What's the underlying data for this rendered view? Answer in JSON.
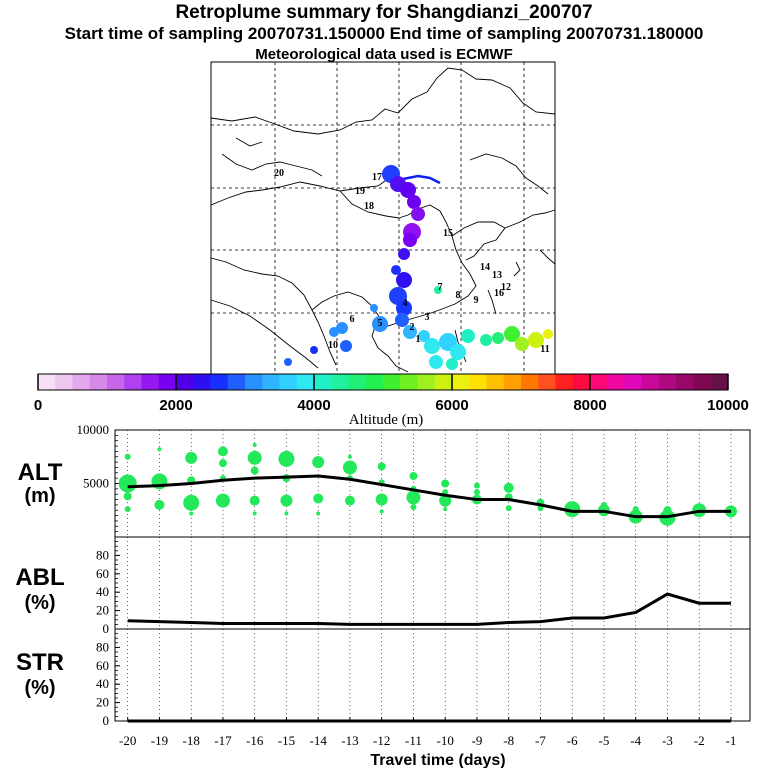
{
  "header": {
    "title": "Retroplume summary for Shangdianzi_200707",
    "sampling": "Start time of sampling 20070731.150000     End time of sampling 20070731.180000",
    "met": "Meteorological data used is ECMWF"
  },
  "colorbar": {
    "label": "Altitude (m)",
    "ticks": [
      "0",
      "2000",
      "4000",
      "6000",
      "8000",
      "10000"
    ],
    "range": [
      0,
      10000
    ],
    "colors": [
      "#f7e0f7",
      "#eec8ee",
      "#e3a8ee",
      "#d68ae8",
      "#c766e8",
      "#b040f0",
      "#9418f0",
      "#7a00f0",
      "#5000e8",
      "#2d10f0",
      "#1830ff",
      "#2060ff",
      "#2890ff",
      "#30b4ff",
      "#30d0ff",
      "#30e8f0",
      "#20f0c8",
      "#20f0a0",
      "#20f078",
      "#20f050",
      "#40f030",
      "#70f020",
      "#a0f020",
      "#ccf010",
      "#ecf010",
      "#ffe000",
      "#ffc000",
      "#ffa000",
      "#ff7800",
      "#ff5020",
      "#ff2020",
      "#ff0a40",
      "#ff0878",
      "#f008a0",
      "#e008b8",
      "#c80898",
      "#b00880",
      "#980868",
      "#800850",
      "#681048"
    ]
  },
  "map": {
    "numbered_positions": [
      {
        "label": "1",
        "days": 1
      },
      {
        "label": "2",
        "days": 2
      },
      {
        "label": "3",
        "days": 3
      },
      {
        "label": "4",
        "days": 4
      },
      {
        "label": "5",
        "days": 5
      },
      {
        "label": "6",
        "days": 6
      },
      {
        "label": "7",
        "days": 7
      },
      {
        "label": "8",
        "days": 8
      },
      {
        "label": "9",
        "days": 9
      },
      {
        "label": "10",
        "days": 10
      },
      {
        "label": "11",
        "days": 11
      },
      {
        "label": "12",
        "days": 12
      },
      {
        "label": "13",
        "days": 13
      },
      {
        "label": "14",
        "days": 14
      },
      {
        "label": "15",
        "days": 15
      },
      {
        "label": "16",
        "days": 16
      },
      {
        "label": "17",
        "days": 17
      },
      {
        "label": "18",
        "days": 18
      },
      {
        "label": "19",
        "days": 19
      },
      {
        "label": "20",
        "days": 20
      }
    ]
  },
  "panels": {
    "alt": {
      "label_top": "ALT",
      "label_bottom": "(m)"
    },
    "abl": {
      "label_top": "ABL",
      "label_bottom": "(%)"
    },
    "str": {
      "label_top": "STR",
      "label_bottom": "(%)"
    }
  },
  "chart_data": [
    {
      "type": "line",
      "title": "ALT (m)",
      "xlabel": "Travel time (days)",
      "ylabel": "ALT (m)",
      "xlim": [
        -20,
        -0.5
      ],
      "ylim": [
        0,
        10000
      ],
      "yticks": [
        "10000",
        "5000"
      ],
      "xticks": [
        "-20",
        "-19",
        "-18",
        "-17",
        "-16",
        "-15",
        "-14",
        "-13",
        "-12",
        "-11",
        "-10",
        "-9",
        "-8",
        "-7",
        "-6",
        "-5",
        "-4",
        "-3",
        "-2",
        "-1"
      ],
      "x": [
        -20,
        -19,
        -18,
        -17,
        -16,
        -15,
        -14,
        -13,
        -12,
        -11,
        -10,
        -9,
        -8,
        -7,
        -6,
        -5,
        -4,
        -3,
        -2,
        -1
      ],
      "values": [
        4700,
        4800,
        5000,
        5300,
        5500,
        5600,
        5700,
        5400,
        4900,
        4400,
        3900,
        3500,
        3500,
        3000,
        2400,
        2400,
        1900,
        1900,
        2400,
        2400
      ],
      "clusters": [
        {
          "x": -20,
          "points": [
            [
              7500,
              3
            ],
            [
              5000,
              9
            ],
            [
              3800,
              4
            ],
            [
              2600,
              3
            ]
          ]
        },
        {
          "x": -19,
          "points": [
            [
              8200,
              2
            ],
            [
              5200,
              8
            ],
            [
              3000,
              5
            ]
          ]
        },
        {
          "x": -18,
          "points": [
            [
              7400,
              6
            ],
            [
              5300,
              4
            ],
            [
              3200,
              8
            ],
            [
              2200,
              2
            ]
          ]
        },
        {
          "x": -17,
          "points": [
            [
              8000,
              5
            ],
            [
              6900,
              4
            ],
            [
              5500,
              3
            ],
            [
              3400,
              7
            ]
          ]
        },
        {
          "x": -16,
          "points": [
            [
              8600,
              2
            ],
            [
              7400,
              7
            ],
            [
              6200,
              4
            ],
            [
              3400,
              5
            ],
            [
              2200,
              2
            ]
          ]
        },
        {
          "x": -15,
          "points": [
            [
              7300,
              8
            ],
            [
              5500,
              4
            ],
            [
              3400,
              6
            ],
            [
              2200,
              2
            ]
          ]
        },
        {
          "x": -14,
          "points": [
            [
              7000,
              6
            ],
            [
              3600,
              5
            ],
            [
              2200,
              2
            ]
          ]
        },
        {
          "x": -13,
          "points": [
            [
              7500,
              2
            ],
            [
              6500,
              7
            ],
            [
              5500,
              3
            ],
            [
              3400,
              5
            ]
          ]
        },
        {
          "x": -12,
          "points": [
            [
              6600,
              4
            ],
            [
              5100,
              3
            ],
            [
              3500,
              6
            ],
            [
              2400,
              2
            ]
          ]
        },
        {
          "x": -11,
          "points": [
            [
              5700,
              4
            ],
            [
              4500,
              3
            ],
            [
              3700,
              7
            ],
            [
              2800,
              3
            ]
          ]
        },
        {
          "x": -10,
          "points": [
            [
              5000,
              4
            ],
            [
              4200,
              3
            ],
            [
              3400,
              6
            ],
            [
              2600,
              2
            ]
          ]
        },
        {
          "x": -9,
          "points": [
            [
              4800,
              3
            ],
            [
              4200,
              3
            ],
            [
              3500,
              5
            ]
          ]
        },
        {
          "x": -8,
          "points": [
            [
              4600,
              5
            ],
            [
              3700,
              4
            ],
            [
              2700,
              3
            ]
          ]
        },
        {
          "x": -7,
          "points": [
            [
              3200,
              4
            ],
            [
              2700,
              3
            ]
          ]
        },
        {
          "x": -6,
          "points": [
            [
              2600,
              8
            ]
          ]
        },
        {
          "x": -5,
          "points": [
            [
              2500,
              6
            ],
            [
              3000,
              3
            ]
          ]
        },
        {
          "x": -4,
          "points": [
            [
              1900,
              7
            ],
            [
              2600,
              3
            ]
          ]
        },
        {
          "x": -3,
          "points": [
            [
              1800,
              8
            ],
            [
              2500,
              4
            ]
          ]
        },
        {
          "x": -2,
          "points": [
            [
              2500,
              7
            ]
          ]
        },
        {
          "x": -1,
          "points": [
            [
              2400,
              6
            ]
          ]
        }
      ]
    },
    {
      "type": "line",
      "title": "ABL (%)",
      "ylabel": "ABL (%)",
      "xlim": [
        -20,
        -0.5
      ],
      "ylim": [
        0,
        100
      ],
      "yticks": [
        "80",
        "60",
        "40",
        "20",
        "0"
      ],
      "x": [
        -20,
        -19,
        -18,
        -17,
        -16,
        -15,
        -14,
        -13,
        -12,
        -11,
        -10,
        -9,
        -8,
        -7,
        -6,
        -5,
        -4,
        -3,
        -2,
        -1
      ],
      "values": [
        9,
        8,
        7,
        6,
        6,
        6,
        6,
        5,
        5,
        5,
        5,
        5,
        7,
        8,
        12,
        12,
        18,
        38,
        28,
        28
      ]
    },
    {
      "type": "line",
      "title": "STR (%)",
      "ylabel": "STR (%)",
      "xlim": [
        -20,
        -0.5
      ],
      "ylim": [
        0,
        100
      ],
      "yticks": [
        "80",
        "60",
        "40",
        "20",
        "0"
      ],
      "x": [
        -20,
        -19,
        -18,
        -17,
        -16,
        -15,
        -14,
        -13,
        -12,
        -11,
        -10,
        -9,
        -8,
        -7,
        -6,
        -5,
        -4,
        -3,
        -2,
        -1
      ],
      "values": [
        0,
        0,
        0,
        0,
        0,
        0,
        0,
        0,
        0,
        0,
        0,
        0,
        0,
        0,
        0,
        0,
        0,
        0,
        0,
        0
      ]
    }
  ]
}
